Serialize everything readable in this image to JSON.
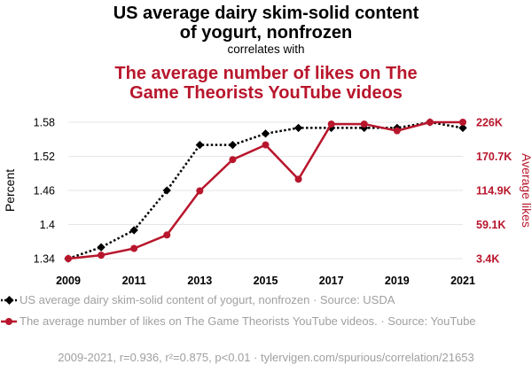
{
  "title_line1": "US average dairy skim-solid content",
  "title_line2": "of yogurt, nonfrozen",
  "correlates_text": "correlates with",
  "subtitle_line1": "The average number of likes on The",
  "subtitle_line2": "Game Theorists YouTube videos",
  "legend": {
    "series1": "US average dairy skim-solid content of yogurt, nonfrozen · Source: USDA",
    "series2": "The average number of likes on The Game Theorists YouTube videos. · Source: YouTube"
  },
  "footer": "2009-2021, r=0.936, r²=0.875, p<0.01 · tylervigen.com/spurious/correlation/21653",
  "colors": {
    "series1": "#000000",
    "series2": "#b8162c",
    "grid": "#e6e6e6",
    "muted": "#a0a0a0"
  },
  "chart_data": {
    "type": "line",
    "x": [
      2009,
      2010,
      2011,
      2012,
      2013,
      2014,
      2015,
      2016,
      2017,
      2018,
      2019,
      2020,
      2021
    ],
    "xticks": [
      "2009",
      "2011",
      "2013",
      "2015",
      "2017",
      "2019",
      "2021"
    ],
    "xlim": [
      2009,
      2021
    ],
    "ylabel_left": "Percent",
    "ylabel_right": "Average likes",
    "yticks_left": [
      "1.34",
      "1.4",
      "1.46",
      "1.52",
      "1.58"
    ],
    "yticks_right": [
      "3.4K",
      "59.1K",
      "114.9K",
      "170.7K",
      "226K"
    ],
    "ylim_left": [
      1.34,
      1.58
    ],
    "ylim_right": [
      3400,
      226000
    ],
    "series": [
      {
        "name": "US average dairy skim-solid content of yogurt, nonfrozen",
        "axis": "left",
        "style": "dotted",
        "marker": "diamond",
        "values": [
          1.34,
          1.36,
          1.39,
          1.46,
          1.54,
          1.54,
          1.56,
          1.57,
          1.57,
          1.57,
          1.57,
          1.58,
          1.57
        ]
      },
      {
        "name": "The average number of likes on The Game Theorists YouTube videos.",
        "axis": "right",
        "style": "solid",
        "marker": "circle",
        "values": [
          3400,
          9000,
          20000,
          42000,
          114000,
          165000,
          189000,
          133000,
          223000,
          223000,
          212000,
          226000,
          226000
        ]
      }
    ]
  }
}
